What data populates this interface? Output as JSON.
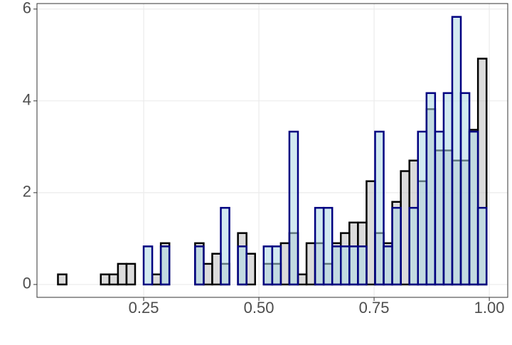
{
  "chart_data": {
    "type": "histogram",
    "bins": [
      0.064,
      0.0826,
      0.1012,
      0.1198,
      0.1384,
      0.157,
      0.1756,
      0.1942,
      0.2128,
      0.2314,
      0.25,
      0.2686,
      0.2872,
      0.3058,
      0.3244,
      0.343,
      0.3616,
      0.3802,
      0.3988,
      0.4174,
      0.436,
      0.4546,
      0.4732,
      0.4918,
      0.5104,
      0.529,
      0.5476,
      0.5662,
      0.5848,
      0.6034,
      0.622,
      0.6406,
      0.6592,
      0.6778,
      0.6964,
      0.715,
      0.7336,
      0.7522,
      0.7708,
      0.7894,
      0.808,
      0.8266,
      0.8452,
      0.8638,
      0.8824,
      0.901,
      0.9196,
      0.9382,
      0.9568,
      0.9754,
      0.994
    ],
    "series": [
      {
        "color": "#000000",
        "fill": "#bdbdbd",
        "values": [
          0.22,
          0,
          0,
          0,
          0,
          0.22,
          0.22,
          0.45,
          0.45,
          0,
          0,
          0.22,
          0.9,
          0,
          0,
          0,
          0.9,
          0.45,
          0.67,
          0.45,
          0,
          1.12,
          0.67,
          0,
          0.45,
          0.45,
          0.9,
          1.12,
          0.22,
          0.9,
          0.9,
          0.45,
          0.9,
          1.12,
          1.35,
          1.35,
          2.25,
          1.12,
          0.9,
          1.8,
          2.47,
          2.7,
          2.25,
          3.82,
          2.92,
          2.92,
          2.7,
          2.7,
          3.37,
          4.92
        ]
      },
      {
        "color": "#000080",
        "fill": "#add8e6",
        "values": [
          0,
          0,
          0,
          0,
          0,
          0,
          0,
          0,
          0,
          0,
          0.83,
          0,
          0.83,
          0,
          0,
          0,
          0.83,
          0,
          0,
          1.67,
          0,
          0.83,
          0,
          0,
          0.83,
          0.83,
          0,
          3.33,
          0,
          0,
          1.67,
          1.67,
          0.83,
          0.83,
          0.83,
          0.83,
          0,
          3.33,
          0.83,
          1.67,
          0,
          1.67,
          3.33,
          4.17,
          3.33,
          4.17,
          5.83,
          4.17,
          3.33,
          1.67
        ]
      }
    ],
    "xlim": [
      0.0185,
      1.04
    ],
    "ylim": [
      -0.28,
      6.12
    ],
    "xticks": [
      0.25,
      {
        "value": 0.5,
        "label": "0.50"
      },
      0.75,
      {
        "value": 1,
        "label": "1.00"
      }
    ],
    "yticks": [
      0,
      2,
      4,
      6
    ],
    "grid": true
  }
}
